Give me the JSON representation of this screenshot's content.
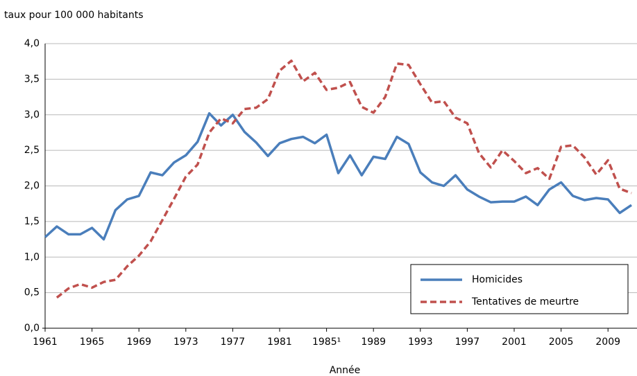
{
  "chart_data": {
    "type": "line",
    "y_axis_label": "taux pour 100 000 habitants",
    "x_axis_label": "Année",
    "x": [
      1961,
      1962,
      1963,
      1964,
      1965,
      1966,
      1967,
      1968,
      1969,
      1970,
      1971,
      1972,
      1973,
      1974,
      1975,
      1976,
      1977,
      1978,
      1979,
      1980,
      1981,
      1982,
      1983,
      1984,
      1985,
      1986,
      1987,
      1988,
      1989,
      1990,
      1991,
      1992,
      1993,
      1994,
      1995,
      1996,
      1997,
      1998,
      1999,
      2000,
      2001,
      2002,
      2003,
      2004,
      2005,
      2006,
      2007,
      2008,
      2009,
      2010,
      2011
    ],
    "series": [
      {
        "name": "Homicides",
        "color": "#4a7ebb",
        "dash": false,
        "values": [
          1.28,
          1.43,
          1.32,
          1.32,
          1.41,
          1.25,
          1.66,
          1.81,
          1.86,
          2.19,
          2.15,
          2.33,
          2.43,
          2.62,
          3.02,
          2.85,
          3.0,
          2.76,
          2.61,
          2.42,
          2.6,
          2.66,
          2.69,
          2.6,
          2.72,
          2.18,
          2.43,
          2.15,
          2.41,
          2.38,
          2.69,
          2.59,
          2.19,
          2.05,
          2.0,
          2.15,
          1.95,
          1.85,
          1.77,
          1.78,
          1.78,
          1.85,
          1.73,
          1.95,
          2.05,
          1.86,
          1.8,
          1.83,
          1.81,
          1.62,
          1.73
        ]
      },
      {
        "name": "Tentatives de meurtre",
        "color": "#c0504d",
        "dash": true,
        "values": [
          null,
          0.43,
          0.56,
          0.62,
          0.57,
          0.65,
          0.68,
          0.87,
          1.02,
          1.22,
          1.52,
          1.82,
          2.13,
          2.3,
          2.75,
          2.95,
          2.88,
          3.08,
          3.1,
          3.22,
          3.62,
          3.76,
          3.47,
          3.59,
          3.35,
          3.38,
          3.46,
          3.11,
          3.03,
          3.25,
          3.72,
          3.7,
          3.43,
          3.17,
          3.19,
          2.96,
          2.88,
          2.46,
          2.26,
          2.5,
          2.35,
          2.18,
          2.25,
          2.1,
          2.55,
          2.57,
          2.4,
          2.16,
          2.36,
          1.96,
          1.9
        ]
      }
    ],
    "xlim": [
      1961,
      2011
    ],
    "xticks": [
      1961,
      1965,
      1969,
      1973,
      1977,
      1981,
      {
        "value": 1985,
        "label": "1985¹"
      },
      1989,
      1993,
      1997,
      2001,
      2005,
      2009
    ],
    "ylim": [
      0,
      4
    ],
    "yticks": [
      {
        "value": 0,
        "label": "0,0"
      },
      {
        "value": 0.5,
        "label": "0,5"
      },
      {
        "value": 1,
        "label": "1,0"
      },
      {
        "value": 1.5,
        "label": "1,5"
      },
      {
        "value": 2,
        "label": "2,0"
      },
      {
        "value": 2.5,
        "label": "2,5"
      },
      {
        "value": 3,
        "label": "3,0"
      },
      {
        "value": 3.5,
        "label": "3,5"
      },
      {
        "value": 4,
        "label": "4,0"
      }
    ],
    "grid": true
  }
}
